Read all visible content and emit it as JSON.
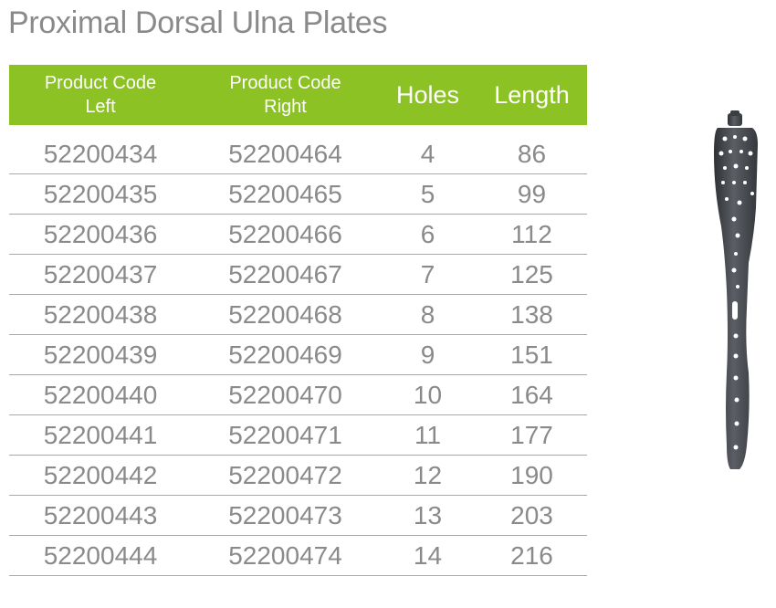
{
  "title": "Proximal Dorsal Ulna Plates",
  "table": {
    "headers": {
      "left_line1": "Product Code",
      "left_line2": "Left",
      "right_line1": "Product Code",
      "right_line2": "Right",
      "holes": "Holes",
      "length": "Length"
    },
    "rows": [
      {
        "left": "52200434",
        "right": "52200464",
        "holes": "4",
        "length": "86"
      },
      {
        "left": "52200435",
        "right": "52200465",
        "holes": "5",
        "length": "99"
      },
      {
        "left": "52200436",
        "right": "52200466",
        "holes": "6",
        "length": "112"
      },
      {
        "left": "52200437",
        "right": "52200467",
        "holes": "7",
        "length": "125"
      },
      {
        "left": "52200438",
        "right": "52200468",
        "holes": "8",
        "length": "138"
      },
      {
        "left": "52200439",
        "right": "52200469",
        "holes": "9",
        "length": "151"
      },
      {
        "left": "52200440",
        "right": "52200470",
        "holes": "10",
        "length": "164"
      },
      {
        "left": "52200441",
        "right": "52200471",
        "holes": "11",
        "length": "177"
      },
      {
        "left": "52200442",
        "right": "52200472",
        "holes": "12",
        "length": "190"
      },
      {
        "left": "52200443",
        "right": "52200473",
        "holes": "13",
        "length": "203"
      },
      {
        "left": "52200444",
        "right": "52200474",
        "holes": "14",
        "length": "216"
      }
    ]
  },
  "colors": {
    "header_bg": "#8cc224",
    "text_gray": "#8a8a8a",
    "plate_metal": "#4a4d52"
  },
  "image": {
    "subject": "plate-icon"
  }
}
